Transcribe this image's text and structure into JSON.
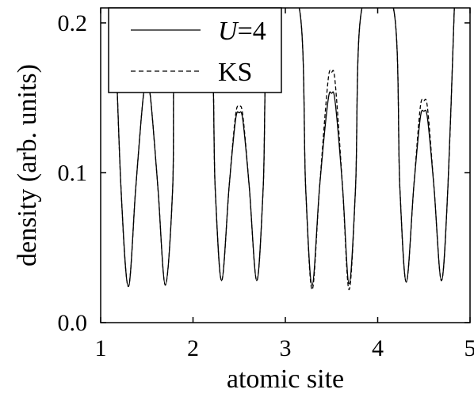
{
  "chart_data": {
    "type": "line",
    "xlabel": "atomic site",
    "ylabel": "density  (arb. units)",
    "xlim": [
      1,
      5
    ],
    "ylim": [
      0,
      0.21
    ],
    "x_ticks": [
      "1",
      "2",
      "3",
      "4",
      "5"
    ],
    "y_ticks": [
      "0.0",
      "0.1",
      "0.2"
    ],
    "grid": false,
    "legend_position": "top-left",
    "series": [
      {
        "name": "U=4",
        "legend_italic": "U",
        "legend_rest": "=4",
        "style": "solid",
        "points": [
          [
            1.15,
            0.21
          ],
          [
            1.22,
            0.09
          ],
          [
            1.3,
            0.024
          ],
          [
            1.38,
            0.09
          ],
          [
            1.46,
            0.15
          ],
          [
            1.5,
            0.158
          ],
          [
            1.54,
            0.15
          ],
          [
            1.62,
            0.09
          ],
          [
            1.7,
            0.025
          ],
          [
            1.78,
            0.09
          ],
          [
            1.83,
            0.21
          ],
          [
            2.17,
            0.21
          ],
          [
            2.24,
            0.09
          ],
          [
            2.31,
            0.028
          ],
          [
            2.39,
            0.09
          ],
          [
            2.46,
            0.135
          ],
          [
            2.5,
            0.14
          ],
          [
            2.54,
            0.135
          ],
          [
            2.61,
            0.09
          ],
          [
            2.69,
            0.028
          ],
          [
            2.76,
            0.09
          ],
          [
            2.83,
            0.21
          ],
          [
            3.15,
            0.21
          ],
          [
            3.22,
            0.09
          ],
          [
            3.29,
            0.025
          ],
          [
            3.37,
            0.09
          ],
          [
            3.46,
            0.147
          ],
          [
            3.5,
            0.153
          ],
          [
            3.54,
            0.147
          ],
          [
            3.62,
            0.09
          ],
          [
            3.69,
            0.026
          ],
          [
            3.76,
            0.09
          ],
          [
            3.83,
            0.21
          ],
          [
            4.17,
            0.21
          ],
          [
            4.24,
            0.09
          ],
          [
            4.31,
            0.027
          ],
          [
            4.39,
            0.09
          ],
          [
            4.46,
            0.136
          ],
          [
            4.5,
            0.141
          ],
          [
            4.54,
            0.136
          ],
          [
            4.61,
            0.09
          ],
          [
            4.69,
            0.028
          ],
          [
            4.76,
            0.09
          ],
          [
            4.83,
            0.21
          ]
        ]
      },
      {
        "name": "KS",
        "style": "dashed",
        "points": [
          [
            1.15,
            0.21
          ],
          [
            1.22,
            0.09
          ],
          [
            1.3,
            0.024
          ],
          [
            1.38,
            0.09
          ],
          [
            1.46,
            0.15
          ],
          [
            1.5,
            0.158
          ],
          [
            1.54,
            0.15
          ],
          [
            1.62,
            0.09
          ],
          [
            1.7,
            0.025
          ],
          [
            1.78,
            0.09
          ],
          [
            1.83,
            0.21
          ],
          [
            2.17,
            0.21
          ],
          [
            2.24,
            0.09
          ],
          [
            2.31,
            0.028
          ],
          [
            2.39,
            0.09
          ],
          [
            2.46,
            0.138
          ],
          [
            2.5,
            0.144
          ],
          [
            2.54,
            0.138
          ],
          [
            2.61,
            0.09
          ],
          [
            2.69,
            0.028
          ],
          [
            2.76,
            0.09
          ],
          [
            2.83,
            0.21
          ],
          [
            3.15,
            0.21
          ],
          [
            3.22,
            0.09
          ],
          [
            3.29,
            0.022
          ],
          [
            3.37,
            0.09
          ],
          [
            3.46,
            0.16
          ],
          [
            3.5,
            0.167
          ],
          [
            3.54,
            0.16
          ],
          [
            3.62,
            0.09
          ],
          [
            3.69,
            0.022
          ],
          [
            3.76,
            0.09
          ],
          [
            3.83,
            0.21
          ],
          [
            4.17,
            0.21
          ],
          [
            4.24,
            0.09
          ],
          [
            4.31,
            0.027
          ],
          [
            4.39,
            0.09
          ],
          [
            4.46,
            0.143
          ],
          [
            4.5,
            0.148
          ],
          [
            4.54,
            0.143
          ],
          [
            4.61,
            0.09
          ],
          [
            4.69,
            0.028
          ],
          [
            4.76,
            0.09
          ],
          [
            4.83,
            0.21
          ]
        ]
      }
    ]
  }
}
